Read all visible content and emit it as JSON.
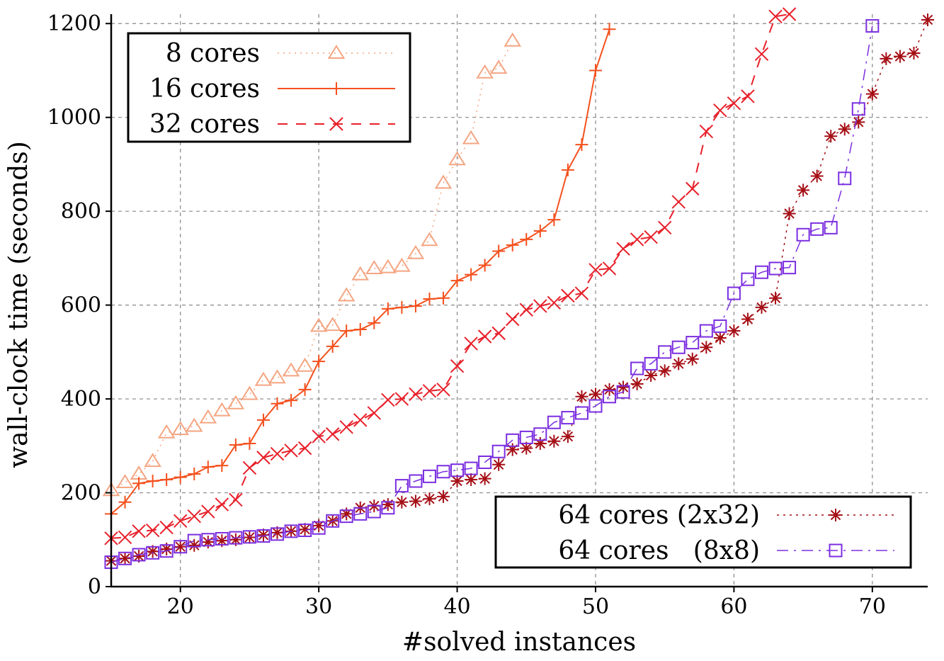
{
  "chart_data": {
    "type": "line",
    "xlabel": "#solved instances",
    "ylabel": "wall-clock time (seconds)",
    "xlim": [
      15,
      74
    ],
    "ylim": [
      0,
      1220
    ],
    "xticks": [
      20,
      30,
      40,
      50,
      60,
      70
    ],
    "yticks": [
      0,
      200,
      400,
      600,
      800,
      1000,
      1200
    ],
    "grid": true,
    "legends": [
      {
        "placement": "top-left",
        "series": [
          0,
          1,
          2
        ]
      },
      {
        "placement": "bottom-right",
        "series": [
          3,
          4
        ]
      }
    ],
    "series": [
      {
        "name": "8 cores",
        "color": "#f4a582",
        "marker": "triangle",
        "dash": "2,6",
        "width": 1.5,
        "x": [
          15,
          16,
          17,
          18,
          19,
          20,
          21,
          22,
          23,
          24,
          25,
          26,
          27,
          28,
          29,
          30,
          31,
          32,
          33,
          34,
          35,
          36,
          37,
          38,
          39,
          40,
          41,
          42,
          43,
          44
        ],
        "y": [
          205,
          222,
          240,
          267,
          328,
          335,
          342,
          360,
          375,
          390,
          410,
          440,
          445,
          460,
          470,
          555,
          557,
          620,
          665,
          678,
          680,
          683,
          710,
          738,
          860,
          910,
          955,
          1095,
          1105,
          1163
        ]
      },
      {
        "name": "16 cores",
        "color": "#f4511e",
        "marker": "plus",
        "dash": "",
        "width": 2,
        "x": [
          15,
          16,
          17,
          18,
          19,
          20,
          21,
          22,
          23,
          24,
          25,
          26,
          27,
          28,
          29,
          30,
          31,
          32,
          33,
          34,
          35,
          36,
          37,
          38,
          39,
          40,
          41,
          42,
          43,
          44,
          45,
          46,
          47,
          48,
          49,
          50,
          51
        ],
        "y": [
          155,
          180,
          220,
          225,
          228,
          233,
          240,
          255,
          258,
          302,
          305,
          355,
          390,
          397,
          420,
          480,
          512,
          545,
          548,
          562,
          592,
          595,
          598,
          613,
          615,
          652,
          665,
          685,
          715,
          728,
          740,
          758,
          782,
          888,
          942,
          1100,
          1188
        ]
      },
      {
        "name": "32 cores",
        "color": "#e8202a",
        "marker": "x",
        "dash": "14,12",
        "width": 2,
        "x": [
          15,
          16,
          17,
          18,
          19,
          20,
          21,
          22,
          23,
          24,
          25,
          26,
          27,
          28,
          29,
          30,
          31,
          32,
          33,
          34,
          35,
          36,
          37,
          38,
          39,
          40,
          41,
          42,
          43,
          44,
          45,
          46,
          47,
          48,
          49,
          50,
          51,
          52,
          53,
          54,
          55,
          56,
          57,
          58,
          59,
          60,
          61,
          62,
          63,
          64
        ],
        "y": [
          103,
          105,
          118,
          120,
          126,
          140,
          150,
          160,
          175,
          185,
          253,
          275,
          283,
          290,
          295,
          320,
          325,
          340,
          355,
          370,
          398,
          400,
          410,
          417,
          420,
          470,
          518,
          533,
          540,
          570,
          590,
          598,
          605,
          620,
          625,
          675,
          678,
          720,
          740,
          745,
          765,
          820,
          848,
          970,
          1015,
          1030,
          1045,
          1135,
          1215,
          1220
        ]
      },
      {
        "name": "64 cores (2x32)",
        "color": "#a50f15",
        "marker": "star",
        "dash": "3,6",
        "width": 1.5,
        "x": [
          15,
          16,
          17,
          18,
          19,
          20,
          21,
          22,
          23,
          24,
          25,
          26,
          27,
          28,
          29,
          30,
          31,
          32,
          33,
          34,
          35,
          36,
          37,
          38,
          39,
          40,
          41,
          42,
          43,
          44,
          45,
          46,
          47,
          48,
          49,
          50,
          51,
          52,
          53,
          54,
          55,
          56,
          57,
          58,
          59,
          60,
          61,
          62,
          63,
          64,
          65,
          66,
          67,
          68,
          69,
          70,
          71,
          72,
          73,
          74
        ],
        "y": [
          55,
          60,
          65,
          75,
          80,
          85,
          88,
          95,
          98,
          100,
          105,
          110,
          115,
          118,
          122,
          130,
          140,
          155,
          168,
          172,
          175,
          180,
          182,
          187,
          192,
          225,
          228,
          230,
          260,
          292,
          295,
          305,
          310,
          320,
          405,
          410,
          420,
          425,
          432,
          450,
          460,
          475,
          485,
          510,
          530,
          545,
          570,
          595,
          615,
          795,
          845,
          875,
          960,
          975,
          990,
          1050,
          1125,
          1130,
          1137,
          1208
        ]
      },
      {
        "name": "64 cores   (8x8)",
        "color": "#7b2ee0",
        "marker": "square",
        "dash": "16,8,3,8",
        "width": 1.5,
        "x": [
          15,
          16,
          17,
          18,
          19,
          20,
          21,
          22,
          23,
          24,
          25,
          26,
          27,
          28,
          29,
          30,
          31,
          32,
          33,
          34,
          35,
          36,
          37,
          38,
          39,
          40,
          41,
          42,
          43,
          44,
          45,
          46,
          47,
          48,
          49,
          50,
          51,
          52,
          53,
          54,
          55,
          56,
          57,
          58,
          59,
          60,
          61,
          62,
          63,
          64,
          65,
          66,
          67,
          68,
          69,
          70
        ],
        "y": [
          52,
          60,
          68,
          72,
          76,
          85,
          98,
          100,
          102,
          104,
          106,
          108,
          112,
          118,
          120,
          125,
          140,
          150,
          155,
          160,
          168,
          215,
          225,
          235,
          245,
          248,
          252,
          265,
          288,
          312,
          318,
          325,
          350,
          360,
          370,
          385,
          405,
          415,
          465,
          475,
          500,
          510,
          520,
          545,
          555,
          625,
          655,
          670,
          678,
          680,
          750,
          762,
          765,
          870,
          1018,
          1195
        ]
      }
    ]
  }
}
